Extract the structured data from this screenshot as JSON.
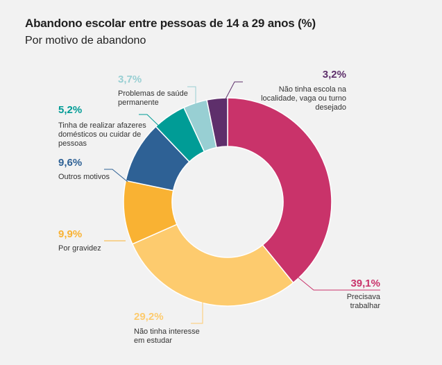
{
  "title": "Abandono escolar entre pessoas de 14 a 29 anos (%)",
  "subtitle": "Por motivo de abandono",
  "chart_data": {
    "type": "pie",
    "donut": true,
    "unit": "%",
    "slices": [
      {
        "label": "Precisava trabalhar",
        "value": 39.1,
        "value_label": "39,1%",
        "color": "#c9336a"
      },
      {
        "label": "Não tinha interesse em estudar",
        "value": 29.2,
        "value_label": "29,2%",
        "color": "#fdcb6e"
      },
      {
        "label": "Por gravidez",
        "value": 9.9,
        "value_label": "9,9%",
        "color": "#f9b233"
      },
      {
        "label": "Outros motivos",
        "value": 9.6,
        "value_label": "9,6%",
        "color": "#2e6195"
      },
      {
        "label": "Tinha de realizar afazeres domésticos ou cuidar de pessoas",
        "value": 5.2,
        "value_label": "5,2%",
        "color": "#009c96"
      },
      {
        "label": "Problemas de saúde permanente",
        "value": 3.7,
        "value_label": "3,7%",
        "color": "#98cfd3"
      },
      {
        "label": "Não tinha escola na localidade, vaga ou turno desejado",
        "value": 3.2,
        "value_label": "3,2%",
        "color": "#5e2f6b"
      }
    ]
  }
}
